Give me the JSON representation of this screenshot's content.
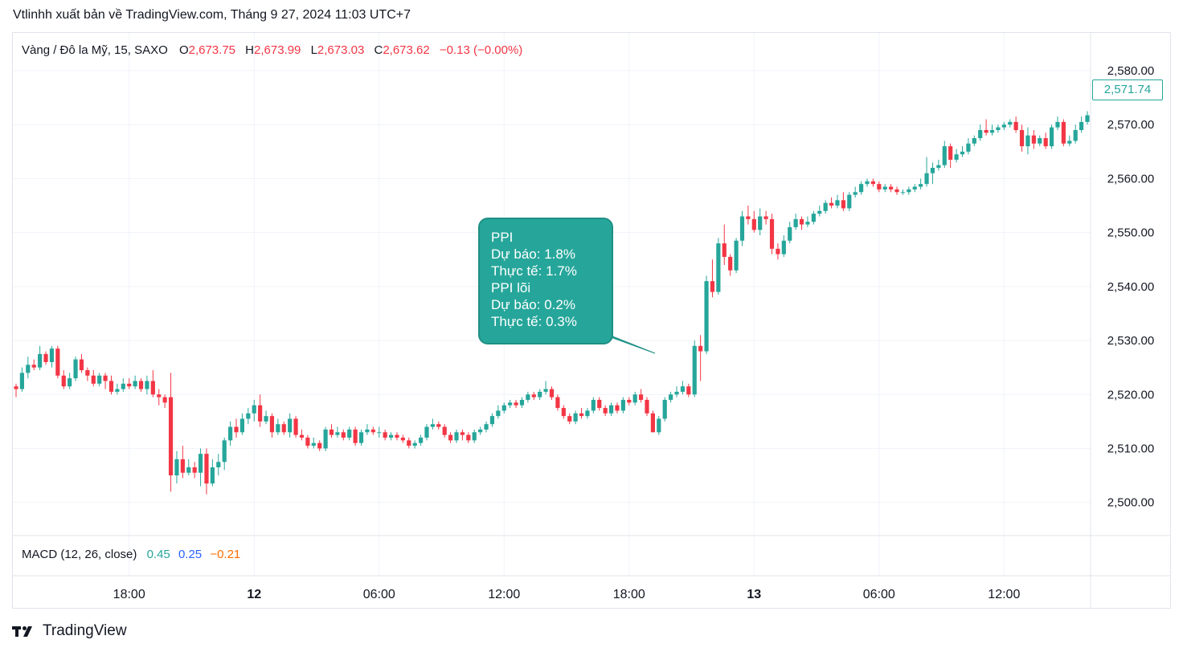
{
  "header": {
    "title": "Vtlinhh xuất bản về TradingView.com, Tháng 9 27, 2024 11:03 UTC+7"
  },
  "legend": {
    "symbol": "Vàng / Đô la Mỹ, 15, SAXO",
    "open_label": "O",
    "open": "2,673.75",
    "high_label": "H",
    "high": "2,673.99",
    "low_label": "L",
    "low": "2,673.03",
    "close_label": "C",
    "close": "2,673.62",
    "change": "−0.13 (−0.00%)"
  },
  "macd": {
    "label": "MACD (12, 26, close)",
    "macd": "0.45",
    "signal": "0.25",
    "hist": "−0.21"
  },
  "callout": {
    "lines": [
      "PPI",
      "Dự báo: 1.8%",
      "Thực tế: 1.7%",
      "PPI lõi",
      "Dự báo: 0.2%",
      "Thực tế: 0.3%"
    ]
  },
  "last_price": "2,571.74",
  "branding": {
    "logo_text": "TradingView"
  },
  "colors": {
    "up": "#26a69a",
    "down": "#f23645",
    "grid": "#f0f3fa",
    "macd_line": "#26a69a",
    "signal_line": "#2962ff",
    "hist": "#ff6d00"
  },
  "chart_data": {
    "type": "candlestick",
    "y_ticks": [
      "2,580.00",
      "2,570.00",
      "2,560.00",
      "2,550.00",
      "2,540.00",
      "2,530.00",
      "2,520.00",
      "2,510.00",
      "2,500.00"
    ],
    "y_tick_values": [
      2580,
      2570,
      2560,
      2550,
      2540,
      2530,
      2520,
      2510,
      2500
    ],
    "ylim": [
      2494,
      2587
    ],
    "x_ticks": [
      {
        "label": "18:00",
        "index": 19,
        "bold": false
      },
      {
        "label": "12",
        "index": 40,
        "bold": true
      },
      {
        "label": "06:00",
        "index": 61,
        "bold": false
      },
      {
        "label": "12:00",
        "index": 82,
        "bold": false
      },
      {
        "label": "18:00",
        "index": 103,
        "bold": false
      },
      {
        "label": "13",
        "index": 124,
        "bold": true
      },
      {
        "label": "06:00",
        "index": 145,
        "bold": false
      },
      {
        "label": "12:00",
        "index": 166,
        "bold": false
      }
    ],
    "candles": [
      [
        2521.5,
        2521.0,
        2522.0,
        2519.5
      ],
      [
        2521.0,
        2524.0,
        2525.0,
        2520.5
      ],
      [
        2524.0,
        2525.5,
        2527.0,
        2523.0
      ],
      [
        2525.5,
        2525.0,
        2526.5,
        2524.5
      ],
      [
        2525.0,
        2527.5,
        2529.0,
        2524.5
      ],
      [
        2527.5,
        2526.0,
        2528.0,
        2525.5
      ],
      [
        2526.0,
        2528.5,
        2529.0,
        2525.0
      ],
      [
        2528.5,
        2523.5,
        2529.0,
        2523.0
      ],
      [
        2523.5,
        2521.5,
        2524.5,
        2521.0
      ],
      [
        2521.5,
        2523.0,
        2524.0,
        2521.0
      ],
      [
        2523.0,
        2526.5,
        2527.0,
        2522.5
      ],
      [
        2526.5,
        2524.5,
        2527.5,
        2524.0
      ],
      [
        2524.5,
        2523.5,
        2525.0,
        2522.5
      ],
      [
        2523.5,
        2522.0,
        2524.5,
        2521.5
      ],
      [
        2522.0,
        2523.5,
        2524.0,
        2521.5
      ],
      [
        2523.5,
        2522.5,
        2524.0,
        2521.0
      ],
      [
        2522.5,
        2520.5,
        2523.5,
        2520.0
      ],
      [
        2520.5,
        2521.0,
        2522.0,
        2520.0
      ],
      [
        2521.0,
        2522.0,
        2523.0,
        2520.5
      ],
      [
        2522.0,
        2521.5,
        2523.0,
        2521.0
      ],
      [
        2521.5,
        2522.5,
        2523.5,
        2521.0
      ],
      [
        2522.5,
        2521.0,
        2523.0,
        2520.5
      ],
      [
        2521.0,
        2522.5,
        2523.5,
        2520.0
      ],
      [
        2522.5,
        2520.0,
        2524.5,
        2519.5
      ],
      [
        2520.0,
        2519.5,
        2521.0,
        2518.0
      ],
      [
        2519.5,
        2518.5,
        2520.0,
        2517.5
      ],
      [
        2519.5,
        2505.0,
        2524.0,
        2502.0
      ],
      [
        2505.0,
        2508.0,
        2509.5,
        2503.5
      ],
      [
        2508.0,
        2505.5,
        2510.5,
        2504.5
      ],
      [
        2505.5,
        2506.5,
        2508.0,
        2505.0
      ],
      [
        2506.5,
        2505.5,
        2507.5,
        2504.5
      ],
      [
        2505.5,
        2509.0,
        2510.0,
        2503.0
      ],
      [
        2509.0,
        2503.5,
        2510.0,
        2501.5
      ],
      [
        2503.5,
        2506.5,
        2508.0,
        2503.0
      ],
      [
        2506.5,
        2507.5,
        2509.0,
        2505.0
      ],
      [
        2507.5,
        2511.5,
        2512.0,
        2506.0
      ],
      [
        2511.5,
        2514.0,
        2515.0,
        2510.5
      ],
      [
        2514.0,
        2513.0,
        2515.5,
        2512.0
      ],
      [
        2513.0,
        2515.5,
        2516.5,
        2512.5
      ],
      [
        2515.5,
        2516.5,
        2517.5,
        2514.5
      ],
      [
        2516.5,
        2518.0,
        2519.0,
        2515.0
      ],
      [
        2518.0,
        2515.0,
        2520.0,
        2514.0
      ],
      [
        2515.0,
        2516.0,
        2517.0,
        2514.5
      ],
      [
        2516.0,
        2513.0,
        2516.5,
        2512.0
      ],
      [
        2513.0,
        2514.5,
        2515.5,
        2512.5
      ],
      [
        2514.5,
        2513.0,
        2515.0,
        2512.5
      ],
      [
        2513.0,
        2515.5,
        2516.5,
        2512.0
      ],
      [
        2515.5,
        2512.5,
        2516.0,
        2512.0
      ],
      [
        2512.5,
        2512.0,
        2513.5,
        2511.5
      ],
      [
        2512.0,
        2510.5,
        2512.5,
        2510.0
      ],
      [
        2510.5,
        2511.0,
        2512.0,
        2510.0
      ],
      [
        2511.0,
        2510.0,
        2511.5,
        2509.5
      ],
      [
        2510.0,
        2513.5,
        2514.0,
        2509.5
      ],
      [
        2513.5,
        2512.5,
        2514.5,
        2512.0
      ],
      [
        2512.5,
        2513.0,
        2514.0,
        2512.0
      ],
      [
        2513.0,
        2512.0,
        2513.5,
        2511.5
      ],
      [
        2512.0,
        2513.5,
        2514.0,
        2511.5
      ],
      [
        2513.5,
        2511.0,
        2514.0,
        2510.5
      ],
      [
        2511.0,
        2513.0,
        2513.5,
        2510.5
      ],
      [
        2513.0,
        2513.5,
        2514.5,
        2512.5
      ],
      [
        2513.5,
        2513.0,
        2514.0,
        2512.5
      ],
      [
        2513.0,
        2513.0,
        2514.0,
        2512.0
      ],
      [
        2513.0,
        2512.0,
        2513.5,
        2511.5
      ],
      [
        2512.0,
        2512.5,
        2513.0,
        2511.5
      ],
      [
        2512.5,
        2512.0,
        2513.0,
        2511.5
      ],
      [
        2512.0,
        2511.5,
        2512.5,
        2511.0
      ],
      [
        2511.5,
        2510.5,
        2512.0,
        2510.0
      ],
      [
        2510.5,
        2511.0,
        2511.5,
        2510.0
      ],
      [
        2511.0,
        2512.0,
        2512.5,
        2510.5
      ],
      [
        2512.0,
        2514.0,
        2514.5,
        2511.5
      ],
      [
        2514.0,
        2514.5,
        2515.5,
        2513.5
      ],
      [
        2514.5,
        2514.0,
        2515.0,
        2513.5
      ],
      [
        2514.0,
        2512.5,
        2514.5,
        2512.0
      ],
      [
        2512.5,
        2511.5,
        2513.0,
        2511.0
      ],
      [
        2511.5,
        2513.0,
        2513.5,
        2511.0
      ],
      [
        2513.0,
        2512.5,
        2513.5,
        2511.5
      ],
      [
        2512.5,
        2511.5,
        2513.0,
        2511.0
      ],
      [
        2511.5,
        2513.0,
        2513.5,
        2511.0
      ],
      [
        2513.0,
        2513.5,
        2514.0,
        2512.5
      ],
      [
        2513.5,
        2514.5,
        2515.0,
        2513.0
      ],
      [
        2514.5,
        2516.0,
        2516.5,
        2514.0
      ],
      [
        2516.0,
        2517.0,
        2518.0,
        2515.5
      ],
      [
        2517.0,
        2518.0,
        2518.5,
        2516.5
      ],
      [
        2518.0,
        2518.5,
        2519.0,
        2517.5
      ],
      [
        2518.5,
        2518.0,
        2519.0,
        2517.5
      ],
      [
        2518.0,
        2519.0,
        2519.5,
        2517.5
      ],
      [
        2519.0,
        2520.0,
        2520.5,
        2518.5
      ],
      [
        2520.0,
        2519.5,
        2520.5,
        2519.0
      ],
      [
        2519.5,
        2520.5,
        2521.0,
        2519.0
      ],
      [
        2520.5,
        2521.0,
        2522.5,
        2520.0
      ],
      [
        2521.0,
        2519.5,
        2521.5,
        2519.0
      ],
      [
        2519.5,
        2517.5,
        2520.0,
        2517.0
      ],
      [
        2517.5,
        2516.0,
        2518.0,
        2515.5
      ],
      [
        2516.0,
        2515.0,
        2516.5,
        2514.5
      ],
      [
        2515.0,
        2516.5,
        2517.0,
        2514.5
      ],
      [
        2516.5,
        2516.0,
        2517.5,
        2515.5
      ],
      [
        2516.0,
        2517.0,
        2517.5,
        2515.5
      ],
      [
        2517.0,
        2519.0,
        2519.5,
        2516.5
      ],
      [
        2519.0,
        2517.5,
        2519.5,
        2517.0
      ],
      [
        2517.5,
        2516.5,
        2518.0,
        2516.0
      ],
      [
        2516.5,
        2518.0,
        2518.5,
        2516.0
      ],
      [
        2518.0,
        2517.0,
        2518.5,
        2516.5
      ],
      [
        2517.0,
        2519.0,
        2519.5,
        2516.5
      ],
      [
        2519.0,
        2518.5,
        2519.5,
        2518.0
      ],
      [
        2518.5,
        2520.0,
        2520.5,
        2518.0
      ],
      [
        2520.0,
        2519.0,
        2521.0,
        2518.5
      ],
      [
        2519.0,
        2516.5,
        2519.5,
        2516.0
      ],
      [
        2516.5,
        2513.0,
        2517.0,
        2513.0
      ],
      [
        2513.0,
        2515.5,
        2516.0,
        2512.5
      ],
      [
        2515.5,
        2519.0,
        2519.5,
        2515.0
      ],
      [
        2519.0,
        2520.0,
        2520.5,
        2518.5
      ],
      [
        2520.0,
        2520.5,
        2521.5,
        2519.5
      ],
      [
        2520.5,
        2521.5,
        2522.5,
        2520.0
      ],
      [
        2521.5,
        2520.0,
        2522.0,
        2519.5
      ],
      [
        2520.0,
        2529.0,
        2530.0,
        2519.5
      ],
      [
        2529.0,
        2528.0,
        2531.0,
        2522.5
      ],
      [
        2528.0,
        2541.0,
        2542.0,
        2527.5
      ],
      [
        2541.0,
        2539.0,
        2545.0,
        2538.0
      ],
      [
        2539.0,
        2548.0,
        2549.0,
        2538.5
      ],
      [
        2548.0,
        2545.5,
        2551.5,
        2544.0
      ],
      [
        2545.5,
        2543.0,
        2546.0,
        2542.0
      ],
      [
        2543.0,
        2548.5,
        2549.0,
        2542.5
      ],
      [
        2548.5,
        2553.0,
        2554.0,
        2547.5
      ],
      [
        2553.0,
        2552.5,
        2555.0,
        2551.5
      ],
      [
        2552.5,
        2550.5,
        2554.0,
        2550.0
      ],
      [
        2550.5,
        2553.0,
        2554.5,
        2549.5
      ],
      [
        2553.0,
        2552.5,
        2554.0,
        2551.5
      ],
      [
        2552.5,
        2547.0,
        2553.5,
        2546.0
      ],
      [
        2547.0,
        2546.0,
        2548.0,
        2545.0
      ],
      [
        2546.0,
        2548.5,
        2549.5,
        2545.5
      ],
      [
        2548.5,
        2551.0,
        2552.0,
        2548.0
      ],
      [
        2551.0,
        2552.5,
        2553.5,
        2550.5
      ],
      [
        2552.5,
        2551.5,
        2553.0,
        2550.5
      ],
      [
        2551.5,
        2552.0,
        2553.0,
        2551.0
      ],
      [
        2552.0,
        2553.5,
        2554.0,
        2551.5
      ],
      [
        2553.5,
        2554.0,
        2555.0,
        2553.0
      ],
      [
        2554.0,
        2555.5,
        2556.0,
        2553.5
      ],
      [
        2555.5,
        2555.0,
        2556.5,
        2554.5
      ],
      [
        2555.0,
        2556.0,
        2557.0,
        2554.5
      ],
      [
        2556.0,
        2554.5,
        2557.5,
        2554.0
      ],
      [
        2554.5,
        2557.0,
        2557.5,
        2554.0
      ],
      [
        2557.0,
        2557.5,
        2558.5,
        2556.5
      ],
      [
        2557.5,
        2559.0,
        2559.5,
        2557.0
      ],
      [
        2559.0,
        2559.5,
        2560.0,
        2558.5
      ],
      [
        2559.5,
        2559.0,
        2560.0,
        2558.5
      ],
      [
        2559.0,
        2558.0,
        2559.5,
        2557.5
      ],
      [
        2558.0,
        2558.5,
        2559.0,
        2557.5
      ],
      [
        2558.5,
        2558.0,
        2559.0,
        2557.5
      ],
      [
        2558.0,
        2557.5,
        2558.5,
        2557.0
      ],
      [
        2557.5,
        2557.5,
        2558.0,
        2557.0
      ],
      [
        2557.5,
        2558.0,
        2558.5,
        2557.0
      ],
      [
        2558.0,
        2558.5,
        2559.0,
        2557.5
      ],
      [
        2558.5,
        2559.0,
        2560.0,
        2558.0
      ],
      [
        2559.0,
        2561.0,
        2564.0,
        2558.5
      ],
      [
        2561.0,
        2562.0,
        2563.0,
        2559.0
      ],
      [
        2562.0,
        2562.5,
        2563.5,
        2561.5
      ],
      [
        2562.5,
        2566.0,
        2567.0,
        2562.0
      ],
      [
        2566.0,
        2563.5,
        2566.5,
        2562.0
      ],
      [
        2563.5,
        2564.5,
        2565.5,
        2563.0
      ],
      [
        2564.5,
        2565.0,
        2566.0,
        2564.0
      ],
      [
        2565.0,
        2566.5,
        2567.5,
        2564.5
      ],
      [
        2566.5,
        2567.5,
        2568.0,
        2566.0
      ],
      [
        2567.5,
        2569.0,
        2570.0,
        2567.0
      ],
      [
        2569.0,
        2568.5,
        2571.0,
        2568.0
      ],
      [
        2568.5,
        2569.0,
        2570.0,
        2568.0
      ],
      [
        2569.0,
        2569.5,
        2570.0,
        2568.5
      ],
      [
        2569.5,
        2570.0,
        2570.5,
        2569.0
      ],
      [
        2570.0,
        2570.5,
        2571.0,
        2569.5
      ],
      [
        2570.5,
        2569.0,
        2571.5,
        2568.5
      ],
      [
        2569.0,
        2566.0,
        2570.0,
        2565.0
      ],
      [
        2566.0,
        2568.0,
        2569.5,
        2564.5
      ],
      [
        2568.0,
        2566.5,
        2569.0,
        2565.5
      ],
      [
        2566.5,
        2567.5,
        2568.0,
        2566.0
      ],
      [
        2567.5,
        2566.0,
        2568.5,
        2565.5
      ],
      [
        2566.0,
        2569.5,
        2570.0,
        2565.5
      ],
      [
        2569.5,
        2570.5,
        2571.5,
        2569.0
      ],
      [
        2570.5,
        2566.5,
        2571.0,
        2566.0
      ],
      [
        2566.5,
        2567.0,
        2568.0,
        2566.0
      ],
      [
        2567.0,
        2569.0,
        2570.0,
        2566.5
      ],
      [
        2569.0,
        2570.5,
        2571.5,
        2568.5
      ],
      [
        2570.5,
        2571.74,
        2572.5,
        2570.0
      ]
    ]
  }
}
